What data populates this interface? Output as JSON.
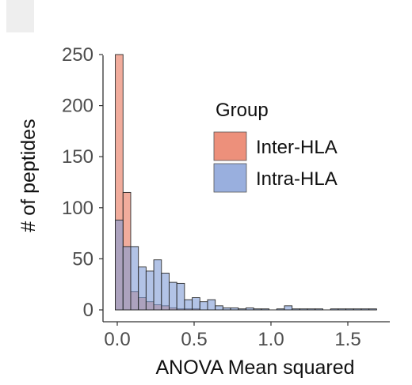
{
  "chart_data": {
    "type": "bar",
    "subtype": "overlaid-histogram",
    "title": "",
    "xlabel": "ANOVA Mean squared",
    "ylabel": "# of peptides",
    "xlim": [
      -0.05,
      1.75
    ],
    "ylim": [
      0,
      265
    ],
    "x_ticks": [
      0.0,
      0.5,
      1.0,
      1.5
    ],
    "x_tick_labels": [
      "0.0",
      "0.5",
      "1.0",
      "1.5"
    ],
    "y_ticks": [
      0,
      50,
      100,
      150,
      200,
      250
    ],
    "y_tick_labels": [
      "0",
      "50",
      "100",
      "150",
      "200",
      "250"
    ],
    "grid": false,
    "bin_start": -0.0125,
    "bin_width": 0.05,
    "legend": {
      "title": "Group",
      "position": "right-inside",
      "entries": [
        {
          "name": "Inter-HLA",
          "color": "#e8745a"
        },
        {
          "name": "Intra-HLA",
          "color": "#7f9bd6"
        }
      ]
    },
    "series": [
      {
        "name": "Inter-HLA",
        "color": "#e8745a",
        "values": [
          250,
          115,
          18,
          12,
          8,
          5,
          4,
          2,
          1,
          1,
          1,
          0,
          0,
          0,
          0,
          0,
          0,
          0,
          0,
          0,
          0,
          0,
          0,
          0,
          0,
          0,
          0,
          0,
          0,
          0,
          0,
          0,
          0,
          0
        ]
      },
      {
        "name": "Intra-HLA",
        "color": "#7f9bd6",
        "values": [
          88,
          62,
          62,
          42,
          38,
          49,
          36,
          27,
          26,
          10,
          12,
          8,
          10,
          4,
          2,
          2,
          1,
          2,
          1,
          1,
          0,
          1,
          4,
          1,
          1,
          1,
          1,
          0,
          1,
          1,
          1,
          1,
          1,
          1
        ]
      }
    ]
  }
}
